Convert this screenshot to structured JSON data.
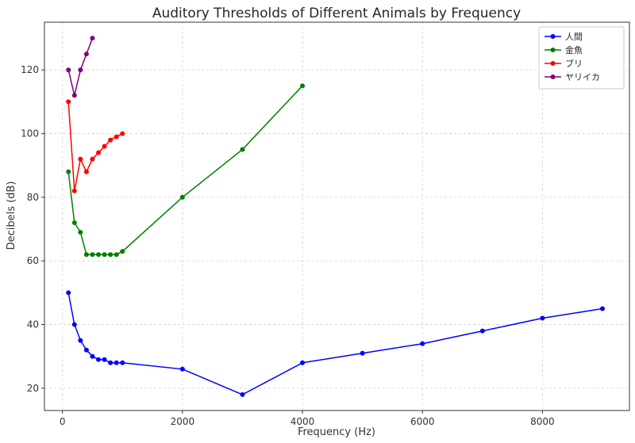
{
  "chart_data": {
    "type": "line",
    "title": "Auditory Thresholds of Different Animals by Frequency",
    "xlabel": "Frequency (Hz)",
    "ylabel": "Decibels (dB)",
    "xlim": [
      -300,
      9450
    ],
    "ylim": [
      13,
      135
    ],
    "xticks": [
      0,
      2000,
      4000,
      6000,
      8000
    ],
    "yticks": [
      20,
      40,
      60,
      80,
      100,
      120
    ],
    "grid": true,
    "legend": "top-right",
    "series": [
      {
        "name": "人間",
        "color": "#0000ff",
        "points": [
          [
            100,
            50
          ],
          [
            200,
            40
          ],
          [
            300,
            35
          ],
          [
            400,
            32
          ],
          [
            500,
            30
          ],
          [
            600,
            29
          ],
          [
            700,
            29
          ],
          [
            800,
            28
          ],
          [
            900,
            28
          ],
          [
            1000,
            28
          ],
          [
            2000,
            26
          ],
          [
            3000,
            18
          ],
          [
            4000,
            28
          ],
          [
            5000,
            31
          ],
          [
            6000,
            34
          ],
          [
            7000,
            38
          ],
          [
            8000,
            42
          ],
          [
            9000,
            45
          ]
        ]
      },
      {
        "name": "金魚",
        "color": "#007f00",
        "points": [
          [
            100,
            88
          ],
          [
            200,
            72
          ],
          [
            300,
            69
          ],
          [
            400,
            62
          ],
          [
            500,
            62
          ],
          [
            600,
            62
          ],
          [
            700,
            62
          ],
          [
            800,
            62
          ],
          [
            900,
            62
          ],
          [
            1000,
            63
          ],
          [
            2000,
            80
          ],
          [
            3000,
            95
          ],
          [
            4000,
            115
          ]
        ]
      },
      {
        "name": "ブリ",
        "color": "#ff0000",
        "points": [
          [
            100,
            110
          ],
          [
            200,
            82
          ],
          [
            300,
            92
          ],
          [
            400,
            88
          ],
          [
            500,
            92
          ],
          [
            600,
            94
          ],
          [
            700,
            96
          ],
          [
            800,
            98
          ],
          [
            900,
            99
          ],
          [
            1000,
            100
          ]
        ]
      },
      {
        "name": "ヤリイカ",
        "color": "#800080",
        "points": [
          [
            100,
            120
          ],
          [
            200,
            112
          ],
          [
            300,
            120
          ],
          [
            400,
            125
          ],
          [
            500,
            130
          ]
        ]
      }
    ]
  }
}
